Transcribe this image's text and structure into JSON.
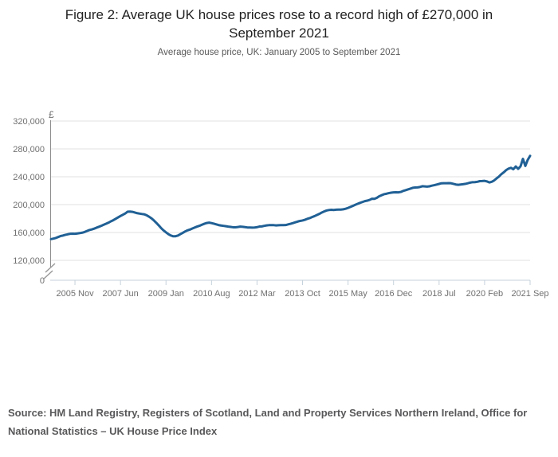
{
  "page": {
    "background": "#ffffff"
  },
  "chart_data": {
    "type": "line",
    "title": "Figure 2: Average UK house prices rose to a record high of £270,000 in September 2021",
    "subtitle": "Average house price, UK: January 2005 to September 2021",
    "source": "Source: HM Land Registry, Registers of Scotland, Land and Property Services Northern Ireland, Office for National Statistics – UK House Price Index",
    "y_axis_unit_label": "£",
    "y_ticks": [
      0,
      120000,
      160000,
      200000,
      240000,
      280000,
      320000
    ],
    "y_tick_labels": [
      "0",
      "120,000",
      "160,000",
      "200,000",
      "240,000",
      "280,000",
      "320,000"
    ],
    "y_axis_break": true,
    "ylim_visible": [
      120000,
      320000
    ],
    "x_range": [
      "2005 Jan",
      "2021 Sep"
    ],
    "x_tick_labels": [
      "2005 Nov",
      "2007 Jun",
      "2009 Jan",
      "2010 Aug",
      "2012 Mar",
      "2013 Oct",
      "2015 May",
      "2016 Dec",
      "2018 Jul",
      "2020 Feb",
      "2021 Sep"
    ],
    "x_tick_month_indices": [
      10,
      29,
      48,
      67,
      86,
      105,
      124,
      143,
      162,
      181,
      200
    ],
    "grid": "horizontal",
    "legend": "none",
    "colors": {
      "line": "#206095",
      "gridline": "#e2e2e2",
      "axis": "#8c8c8c",
      "axis_break": "#9a9a9a",
      "baseline": "#c5d1db",
      "tick_text": "#707071"
    },
    "series": [
      {
        "name": "Average UK house price",
        "color": "#206095",
        "frequency": "monthly",
        "start": "2005-01",
        "end": "2021-09",
        "values": [
          150500,
          151200,
          152100,
          153500,
          154900,
          155600,
          156600,
          157400,
          158100,
          158300,
          158100,
          158600,
          159100,
          159700,
          160700,
          162100,
          163500,
          164400,
          165500,
          166900,
          168200,
          169600,
          171100,
          172600,
          174100,
          176000,
          177600,
          179600,
          181600,
          183600,
          185500,
          187400,
          189900,
          190000,
          189600,
          188700,
          187700,
          187100,
          186500,
          186000,
          184500,
          182500,
          180100,
          177100,
          173700,
          170100,
          166200,
          162900,
          160200,
          157700,
          155700,
          154500,
          154600,
          155700,
          157600,
          159500,
          161500,
          163100,
          164200,
          165700,
          167100,
          168500,
          169600,
          171100,
          172500,
          173600,
          174100,
          173500,
          172600,
          171600,
          170600,
          170000,
          169500,
          169000,
          168400,
          168000,
          167500,
          167400,
          167900,
          168400,
          168100,
          167700,
          167200,
          167100,
          167000,
          167100,
          167600,
          168500,
          168700,
          169500,
          170100,
          170500,
          170600,
          170500,
          170100,
          170400,
          170500,
          170600,
          170700,
          171600,
          172500,
          173500,
          174600,
          175700,
          176600,
          177200,
          178200,
          179600,
          180600,
          182100,
          183500,
          185100,
          186700,
          188600,
          190100,
          191500,
          192200,
          192600,
          192300,
          192700,
          192800,
          192900,
          193300,
          194100,
          195300,
          196700,
          198200,
          199700,
          201100,
          202500,
          203700,
          205000,
          205700,
          206800,
          208400,
          208300,
          209700,
          212000,
          213500,
          214900,
          215600,
          216500,
          217100,
          217600,
          217700,
          217600,
          218200,
          219600,
          220700,
          221800,
          222900,
          224100,
          224600,
          224700,
          225300,
          226400,
          226200,
          225900,
          226300,
          227200,
          227900,
          228800,
          229700,
          230600,
          230700,
          230700,
          230800,
          230700,
          229800,
          228900,
          228400,
          228900,
          229300,
          229800,
          230700,
          231600,
          232200,
          232300,
          232800,
          233700,
          233800,
          234100,
          233300,
          231800,
          232800,
          234700,
          237600,
          240200,
          243700,
          246300,
          249600,
          251700,
          252800,
          250800,
          254800,
          251300,
          254900,
          265700,
          255500,
          264200,
          270000
        ]
      }
    ]
  }
}
